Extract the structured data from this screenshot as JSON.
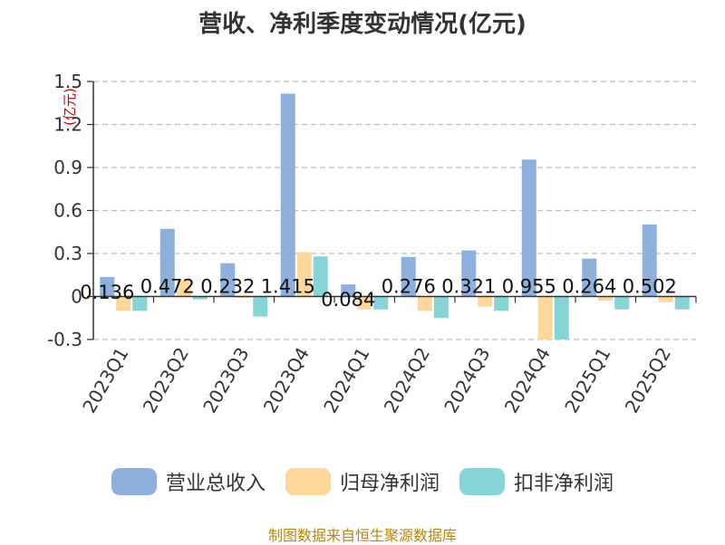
{
  "chart_data": {
    "type": "bar",
    "title": "营收、净利季度变动情况(亿元)",
    "ylabel": "(亿元)",
    "xlabel": "",
    "ylim": [
      -0.3,
      1.5
    ],
    "yticks": [
      "-0.3",
      "0",
      "0.3",
      "0.6",
      "0.9",
      "1.2",
      "1.5"
    ],
    "ytick_values": [
      -0.3,
      0,
      0.3,
      0.6,
      0.9,
      1.2,
      1.5
    ],
    "grid": "horizontal dashed",
    "legend_position": "bottom",
    "categories": [
      "2023Q1",
      "2023Q2",
      "2023Q3",
      "2023Q4",
      "2024Q1",
      "2024Q2",
      "2024Q3",
      "2024Q4",
      "2025Q1",
      "2025Q2"
    ],
    "series": [
      {
        "name": "营业总收入",
        "color": "#8eb0dc",
        "values": [
          0.136,
          0.472,
          0.232,
          1.415,
          0.084,
          0.276,
          0.321,
          0.955,
          0.264,
          0.502
        ],
        "labels": [
          "0.136",
          "0.472",
          "0.232",
          "1.415",
          "0.084",
          "0.276",
          "0.321",
          "0.955",
          "0.264",
          "0.502"
        ]
      },
      {
        "name": "归母净利润",
        "color": "#fed79a",
        "values": [
          -0.1,
          0.11,
          -0.01,
          0.31,
          -0.09,
          -0.1,
          -0.07,
          -0.3,
          -0.03,
          -0.04
        ]
      },
      {
        "name": "扣非净利润",
        "color": "#86d4d6",
        "values": [
          -0.1,
          -0.02,
          -0.14,
          0.28,
          -0.09,
          -0.15,
          -0.1,
          -0.3,
          -0.09,
          -0.09
        ]
      }
    ]
  },
  "source_note": "制图数据来自恒生聚源数据库"
}
